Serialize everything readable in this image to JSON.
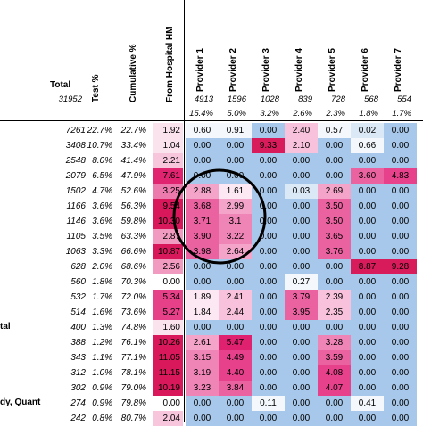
{
  "header": {
    "total_label": "Total",
    "total_value": "31952",
    "test_label": "Test %",
    "cum_label": "Cumulative %",
    "hm_label": "From Hospital HM"
  },
  "providers": [
    {
      "label": "Provider 1",
      "count": "4913",
      "pct": "15.4%"
    },
    {
      "label": "Provider 2",
      "count": "1596",
      "pct": "5.0%"
    },
    {
      "label": "Provider 3",
      "count": "1028",
      "pct": "3.2%"
    },
    {
      "label": "Provider 4",
      "count": "839",
      "pct": "2.6%"
    },
    {
      "label": "Provider 5",
      "count": "728",
      "pct": "2.3%"
    },
    {
      "label": "Provider 6",
      "count": "568",
      "pct": "1.8%"
    },
    {
      "label": "Provider 7",
      "count": "554",
      "pct": "1.7%"
    }
  ],
  "row_labels": [
    {
      "row": 13,
      "text": "tal"
    },
    {
      "row": 18,
      "text": "dy, Quant"
    }
  ],
  "rows": [
    {
      "total": "7261",
      "test": "22.7%",
      "cum": "22.7%",
      "hm": "1.92",
      "p": [
        "0.60",
        "0.91",
        "0.00",
        "2.40",
        "0.57",
        "0.02",
        "0.00"
      ]
    },
    {
      "total": "3408",
      "test": "10.7%",
      "cum": "33.4%",
      "hm": "1.04",
      "p": [
        "0.00",
        "0.00",
        "9.33",
        "2.10",
        "0.00",
        "0.66",
        "0.00"
      ]
    },
    {
      "total": "2548",
      "test": "8.0%",
      "cum": "41.4%",
      "hm": "2.21",
      "p": [
        "0.00",
        "0.00",
        "0.00",
        "0.00",
        "0.00",
        "0.00",
        "0.00"
      ]
    },
    {
      "total": "2079",
      "test": "6.5%",
      "cum": "47.9%",
      "hm": "7.61",
      "p": [
        "0.00",
        "0.00",
        "0.00",
        "0.00",
        "0.00",
        "3.60",
        "4.83"
      ]
    },
    {
      "total": "1502",
      "test": "4.7%",
      "cum": "52.6%",
      "hm": "3.25",
      "p": [
        "2.88",
        "1.61",
        "0.00",
        "0.03",
        "2.69",
        "0.00",
        "0.00"
      ]
    },
    {
      "total": "1166",
      "test": "3.6%",
      "cum": "56.3%",
      "hm": "9.54",
      "p": [
        "3.68",
        "2.99",
        "0.00",
        "0.00",
        "3.50",
        "0.00",
        "0.00"
      ]
    },
    {
      "total": "1146",
      "test": "3.6%",
      "cum": "59.8%",
      "hm": "10.30",
      "p": [
        "3.71",
        "3.1",
        "0.00",
        "0.00",
        "3.50",
        "0.00",
        "0.00"
      ]
    },
    {
      "total": "1105",
      "test": "3.5%",
      "cum": "63.3%",
      "hm": "2.87",
      "p": [
        "3.90",
        "3.22",
        "0.00",
        "0.00",
        "3.65",
        "0.00",
        "0.00"
      ]
    },
    {
      "total": "1063",
      "test": "3.3%",
      "cum": "66.6%",
      "hm": "10.87",
      "p": [
        "3.98",
        "2.64",
        "0.00",
        "0.00",
        "3.76",
        "0.00",
        "0.00"
      ]
    },
    {
      "total": "628",
      "test": "2.0%",
      "cum": "68.6%",
      "hm": "2.56",
      "p": [
        "0.00",
        "0.00",
        "0.00",
        "0.00",
        "0.00",
        "8.87",
        "9.28"
      ]
    },
    {
      "total": "560",
      "test": "1.8%",
      "cum": "70.3%",
      "hm": "0.00",
      "p": [
        "0.00",
        "0.00",
        "0.00",
        "0.27",
        "0.00",
        "0.00",
        "0.00"
      ]
    },
    {
      "total": "532",
      "test": "1.7%",
      "cum": "72.0%",
      "hm": "5.34",
      "p": [
        "1.89",
        "2.41",
        "0.00",
        "3.79",
        "2.39",
        "0.00",
        "0.00"
      ]
    },
    {
      "total": "514",
      "test": "1.6%",
      "cum": "73.6%",
      "hm": "5.27",
      "p": [
        "1.84",
        "2.44",
        "0.00",
        "3.95",
        "2.35",
        "0.00",
        "0.00"
      ]
    },
    {
      "total": "400",
      "test": "1.3%",
      "cum": "74.8%",
      "hm": "1.60",
      "p": [
        "0.00",
        "0.00",
        "0.00",
        "0.00",
        "0.00",
        "0.00",
        "0.00"
      ]
    },
    {
      "total": "388",
      "test": "1.2%",
      "cum": "76.1%",
      "hm": "10.26",
      "p": [
        "2.61",
        "5.47",
        "0.00",
        "0.00",
        "3.28",
        "0.00",
        "0.00"
      ]
    },
    {
      "total": "343",
      "test": "1.1%",
      "cum": "77.1%",
      "hm": "11.05",
      "p": [
        "3.15",
        "4.49",
        "0.00",
        "0.00",
        "3.59",
        "0.00",
        "0.00"
      ]
    },
    {
      "total": "312",
      "test": "1.0%",
      "cum": "78.1%",
      "hm": "11.15",
      "p": [
        "3.19",
        "4.40",
        "0.00",
        "0.00",
        "4.08",
        "0.00",
        "0.00"
      ]
    },
    {
      "total": "302",
      "test": "0.9%",
      "cum": "79.0%",
      "hm": "10.19",
      "p": [
        "3.23",
        "3.84",
        "0.00",
        "0.00",
        "4.07",
        "0.00",
        "0.00"
      ]
    },
    {
      "total": "274",
      "test": "0.9%",
      "cum": "79.8%",
      "hm": "0.00",
      "p": [
        "0.00",
        "0.00",
        "0.11",
        "0.00",
        "0.00",
        "0.41",
        "0.00"
      ]
    },
    {
      "total": "242",
      "test": "0.8%",
      "cum": "80.7%",
      "hm": "2.04",
      "p": [
        "0.00",
        "0.00",
        "0.00",
        "0.00",
        "0.00",
        "0.00",
        "0.00"
      ]
    }
  ],
  "annotation": {
    "shape": "ellipse",
    "color": "#000000"
  }
}
